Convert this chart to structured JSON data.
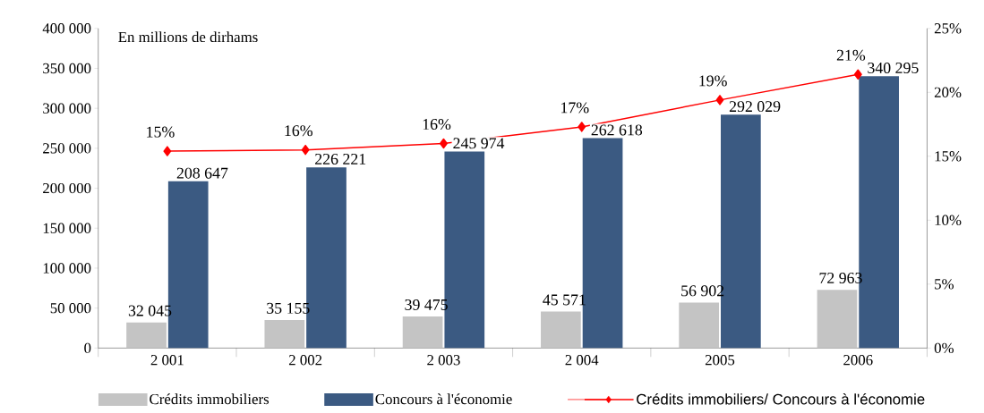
{
  "chart_data": {
    "type": "bar",
    "title": "En millions de dirhams",
    "categories": [
      "2 001",
      "2 002",
      "2 003",
      "2 004",
      "2005",
      "2006"
    ],
    "series": [
      {
        "name": "Crédits immobiliers",
        "color": "#c4c4c4",
        "values": [
          32045,
          35155,
          39475,
          45571,
          56902,
          72963
        ],
        "value_labels": [
          "32 045",
          "35 155",
          "39 475",
          "45 571",
          "56 902",
          "72 963"
        ]
      },
      {
        "name": "Concours à l'économie",
        "color": "#3b5a82",
        "values": [
          208647,
          226221,
          245974,
          262618,
          292029,
          340295
        ],
        "value_labels": [
          "208 647",
          "226 221",
          "245 974",
          "262 618",
          "292 029",
          "340 295"
        ]
      },
      {
        "name": "Crédits immobiliers/ Concours à l'économie",
        "type": "line",
        "axis": "y2",
        "color": "#ff0000",
        "marker": "diamond",
        "values": [
          15.4,
          15.5,
          16.0,
          17.3,
          19.4,
          21.4
        ],
        "value_labels": [
          "15%",
          "16%",
          "16%",
          "17%",
          "19%",
          "21%"
        ]
      }
    ],
    "ylim": [
      0,
      400000
    ],
    "yticks": [
      {
        "value": 0,
        "label": "0"
      },
      {
        "value": 50000,
        "label": "50 000"
      },
      {
        "value": 100000,
        "label": "100 000"
      },
      {
        "value": 150000,
        "label": "150 000"
      },
      {
        "value": 200000,
        "label": "200 000"
      },
      {
        "value": 250000,
        "label": "250 000"
      },
      {
        "value": 300000,
        "label": "300 000"
      },
      {
        "value": 350000,
        "label": "350 000"
      },
      {
        "value": 400000,
        "label": "400 000"
      }
    ],
    "y2lim": [
      0,
      25
    ],
    "y2ticks": [
      {
        "value": 0,
        "label": "0%"
      },
      {
        "value": 5,
        "label": "5%"
      },
      {
        "value": 10,
        "label": "10%"
      },
      {
        "value": 15,
        "label": "15%"
      },
      {
        "value": 20,
        "label": "20%"
      },
      {
        "value": 25,
        "label": "25%"
      }
    ],
    "legend": "bottom"
  }
}
